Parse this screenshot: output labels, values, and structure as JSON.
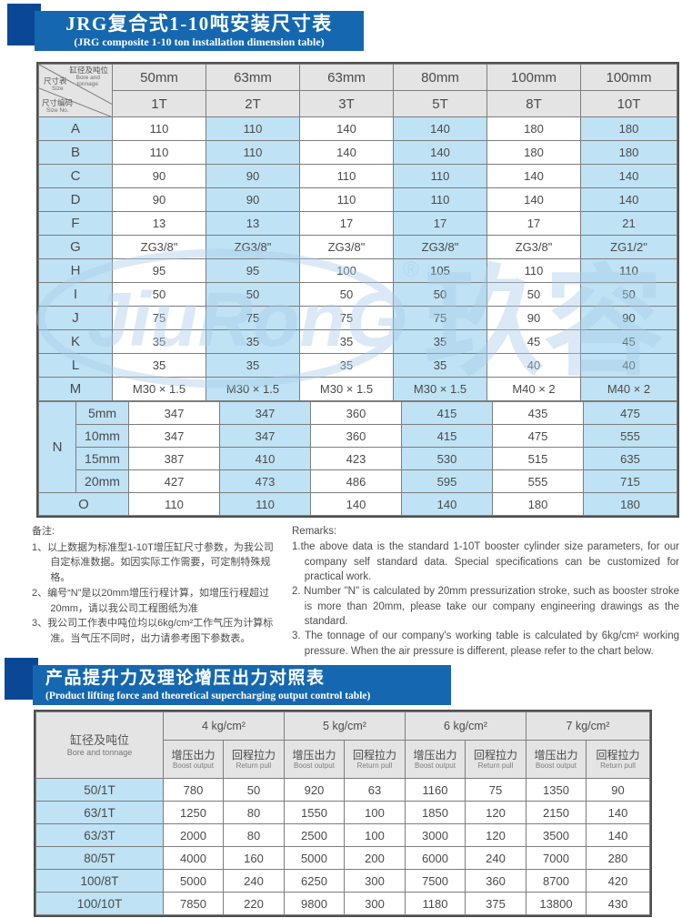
{
  "banner1": {
    "title": "JRG复合式1-10吨安装尺寸表",
    "subtitle": "(JRG composite 1-10 ton installation dimension table)"
  },
  "banner2": {
    "title": "产品提升力及理论增压出力对照表",
    "subtitle": "(Product lifting force and theoretical supercharging output control table)"
  },
  "watermark": {
    "logo_text": "JiuRonG",
    "registered": "®",
    "cjk_text": "玖容",
    "color": "#a8cde9"
  },
  "colors": {
    "banner_bar": "#1568af",
    "banner_square": "#0a4896",
    "header_cell": "#e4e4e4",
    "highlight_cell": "#bfe2f5",
    "border": "#7d7d7d",
    "outer_border": "#4f4f4f",
    "text": "#4a4a4a"
  },
  "table1": {
    "corner": {
      "size_cn": "尺寸表",
      "size_en": "Size",
      "bore_cn": "缸径及吨位",
      "bore_en1": "Bore and",
      "bore_en2": "tonnage",
      "no_cn": "尺寸编码",
      "no_en": "Size No."
    },
    "bore_headers": [
      "50mm",
      "63mm",
      "63mm",
      "80mm",
      "100mm",
      "100mm"
    ],
    "ton_headers": [
      "1T",
      "2T",
      "3T",
      "5T",
      "8T",
      "10T"
    ],
    "rows": [
      {
        "label": "A",
        "values": [
          "110",
          "110",
          "140",
          "140",
          "180",
          "180"
        ]
      },
      {
        "label": "B",
        "values": [
          "110",
          "110",
          "140",
          "140",
          "180",
          "180"
        ]
      },
      {
        "label": "C",
        "values": [
          "90",
          "90",
          "110",
          "110",
          "140",
          "140"
        ]
      },
      {
        "label": "D",
        "values": [
          "90",
          "90",
          "110",
          "110",
          "140",
          "140"
        ]
      },
      {
        "label": "F",
        "values": [
          "13",
          "13",
          "17",
          "17",
          "17",
          "21"
        ]
      },
      {
        "label": "G",
        "values": [
          "ZG3/8\"",
          "ZG3/8\"",
          "ZG3/8\"",
          "ZG3/8\"",
          "ZG3/8\"",
          "ZG1/2\""
        ]
      },
      {
        "label": "H",
        "values": [
          "95",
          "95",
          "100",
          "105",
          "110",
          "110"
        ]
      },
      {
        "label": "I",
        "values": [
          "50",
          "50",
          "50",
          "50",
          "50",
          "50"
        ]
      },
      {
        "label": "J",
        "values": [
          "75",
          "75",
          "75",
          "75",
          "90",
          "90"
        ]
      },
      {
        "label": "K",
        "values": [
          "35",
          "35",
          "35",
          "35",
          "45",
          "45"
        ]
      },
      {
        "label": "L",
        "values": [
          "35",
          "35",
          "35",
          "35",
          "40",
          "40"
        ]
      },
      {
        "label": "M",
        "values": [
          "M30 × 1.5",
          "M30 × 1.5",
          "M30 × 1.5",
          "M30 × 1.5",
          "M40 × 2",
          "M40 × 2"
        ]
      }
    ],
    "n_group": {
      "label": "N",
      "rows": [
        {
          "label": "5mm",
          "values": [
            "347",
            "347",
            "360",
            "415",
            "435",
            "475"
          ]
        },
        {
          "label": "10mm",
          "values": [
            "347",
            "347",
            "360",
            "415",
            "475",
            "555"
          ]
        },
        {
          "label": "15mm",
          "values": [
            "387",
            "410",
            "423",
            "530",
            "515",
            "635"
          ]
        },
        {
          "label": "20mm",
          "values": [
            "427",
            "473",
            "486",
            "595",
            "555",
            "715"
          ]
        }
      ]
    },
    "o_row": {
      "label": "O",
      "values": [
        "110",
        "110",
        "140",
        "140",
        "180",
        "180"
      ]
    }
  },
  "remarks_cn": {
    "heading": "备注:",
    "items": [
      "1、以上数据为标准型1-10T增压缸尺寸参数，为我公司自定标准数据。如因实际工作需要，可定制特殊规格。",
      "2、编号“N”是以20mm增压行程计算，如增压行程超过20mm，请以我公司工程图纸为准",
      "3、我公司工作表中吨位均以6kg/cm²工作气压为计算标准。当气压不同时，出力请参考图下参数表。"
    ]
  },
  "remarks_en": {
    "heading": "Remarks:",
    "items": [
      "1.the above data is the standard 1-10T booster cylinder size parameters, for our company self standard data. Special specifications can be customized for practical work.",
      "2. Number \"N\" is calculated by 20mm pressurization stroke, such as booster stroke is more than 20mm, please take our company engineering drawings as the standard.",
      "3. The tonnage of our company's working table is calculated by 6kg/cm² working pressure. When the air pressure is different, please refer to the chart below."
    ]
  },
  "table2": {
    "corner_cn": "缸径及吨位",
    "corner_en": "Bore and tonnage",
    "pressure_headers": [
      "4 kg/cm²",
      "5 kg/cm²",
      "6 kg/cm²",
      "7 kg/cm²"
    ],
    "boost_cn": "增压出力",
    "boost_en": "Boost output",
    "return_cn": "回程拉力",
    "return_en": "Return pull",
    "rows": [
      {
        "label": "50/1T",
        "values": [
          "780",
          "50",
          "920",
          "63",
          "1160",
          "75",
          "1350",
          "90"
        ]
      },
      {
        "label": "63/1T",
        "values": [
          "1250",
          "80",
          "1550",
          "100",
          "1850",
          "120",
          "2150",
          "140"
        ]
      },
      {
        "label": "63/3T",
        "values": [
          "2000",
          "80",
          "2500",
          "100",
          "3000",
          "120",
          "3500",
          "140"
        ]
      },
      {
        "label": "80/5T",
        "values": [
          "4000",
          "160",
          "5000",
          "200",
          "6000",
          "240",
          "7000",
          "280"
        ]
      },
      {
        "label": "100/8T",
        "values": [
          "5000",
          "240",
          "6250",
          "300",
          "7500",
          "360",
          "8700",
          "420"
        ]
      },
      {
        "label": "100/10T",
        "values": [
          "7850",
          "220",
          "9800",
          "300",
          "1180",
          "375",
          "13800",
          "430"
        ]
      }
    ]
  }
}
